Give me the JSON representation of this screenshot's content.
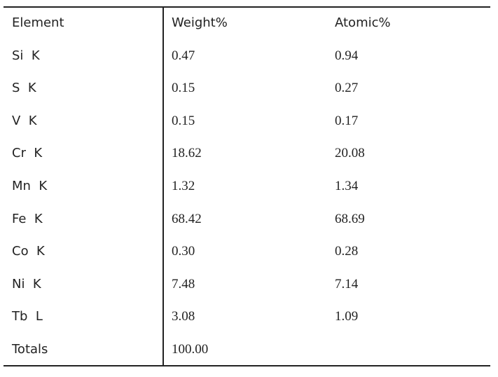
{
  "table": {
    "header": [
      "Element",
      "Weight%",
      "Atomic%"
    ],
    "rows": [
      [
        "Si  K",
        "0.47",
        "0.94"
      ],
      [
        "S  K",
        "0.15",
        "0.27"
      ],
      [
        "V  K",
        "0.15",
        "0.17"
      ],
      [
        "Cr  K",
        "18.62",
        "20.08"
      ],
      [
        "Mn  K",
        "1.32",
        "1.34"
      ],
      [
        "Fe  K",
        "68.42",
        "68.69"
      ],
      [
        "Co  K",
        "0.30",
        "0.28"
      ],
      [
        "Ni  K",
        "7.48",
        "7.14"
      ],
      [
        "Tb  L",
        "3.08",
        "1.09"
      ],
      [
        "Totals",
        "100.00"
      ]
    ]
  }
}
